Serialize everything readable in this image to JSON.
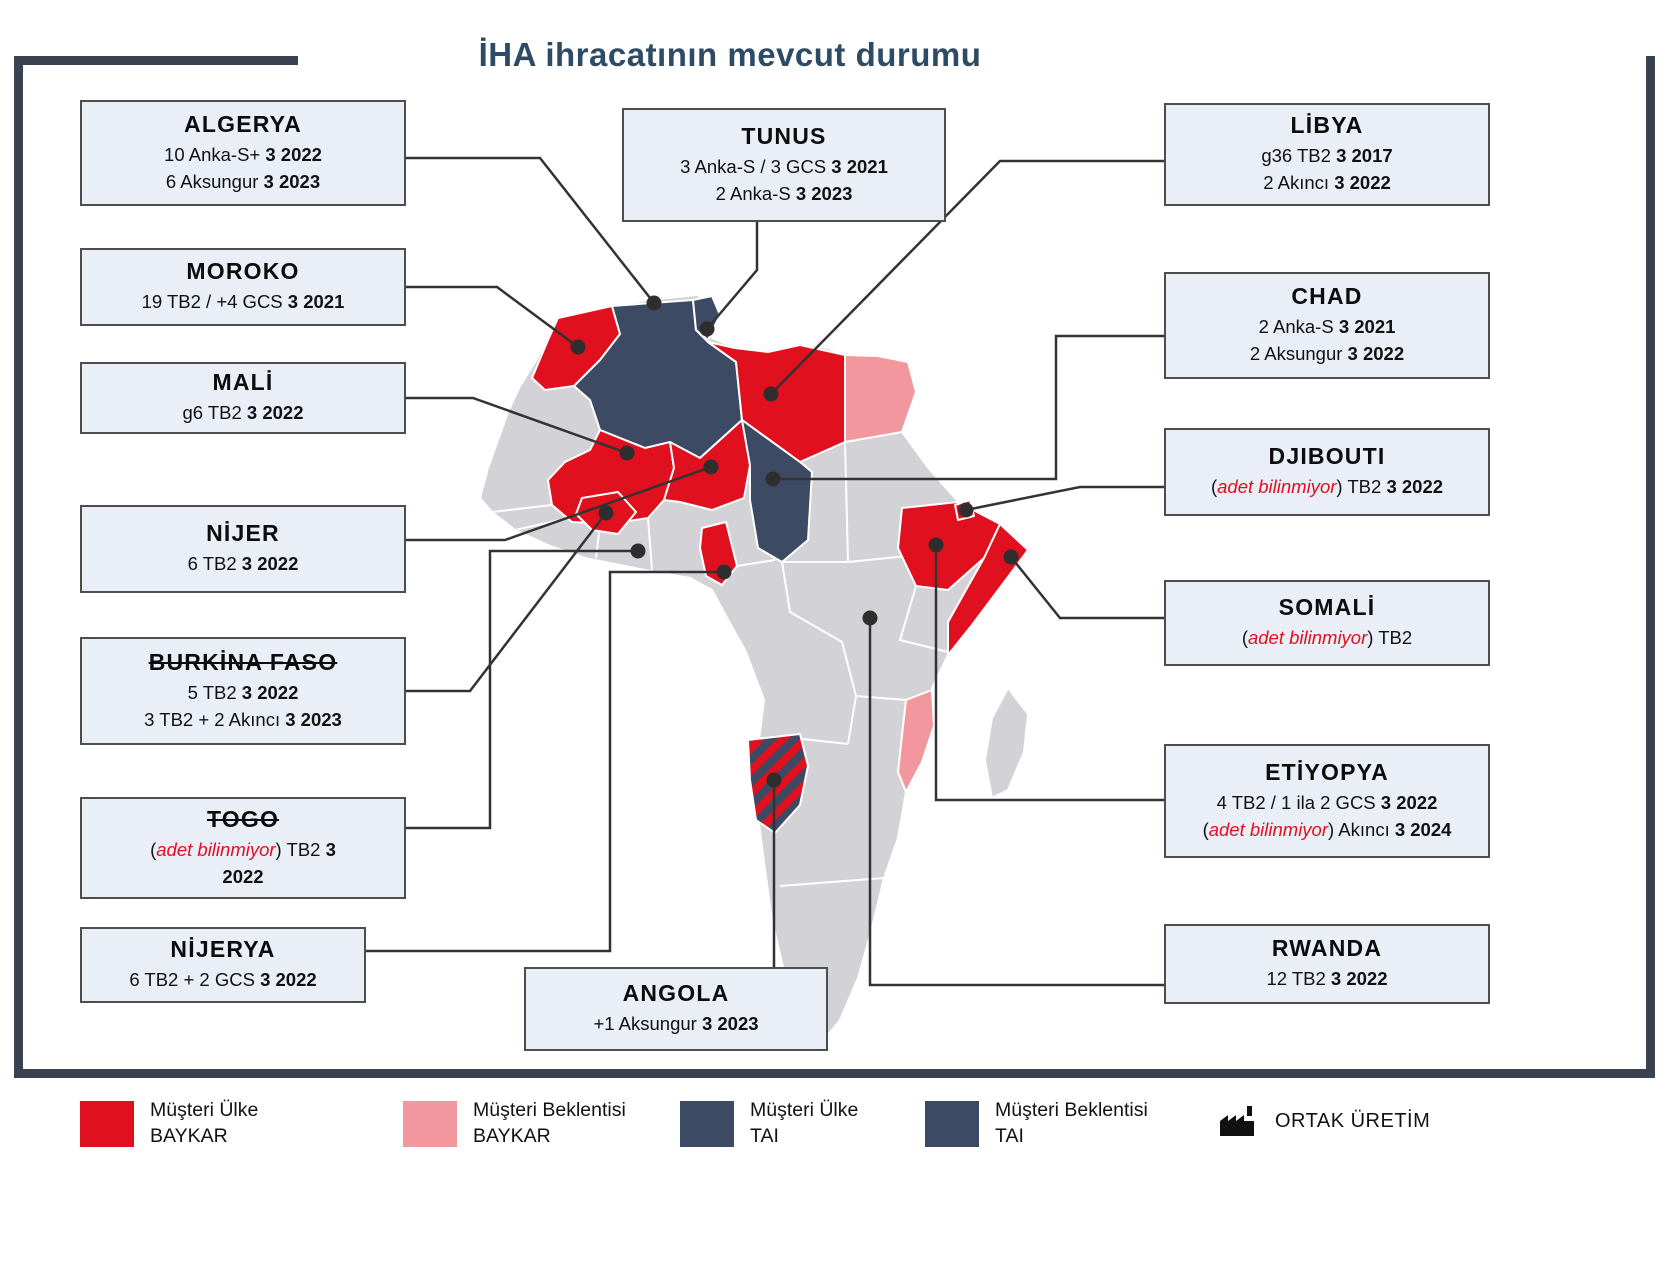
{
  "title": "İHA ihracatının mevcut durumu",
  "colors": {
    "customer_baykar": "#e0101f",
    "prospect_baykar": "#f2979e",
    "customer_tai": "#3d4a63",
    "prospect_tai": "#3d4a63",
    "map_base": "#d3d3d7",
    "frame": "#3a4252",
    "box_bg": "#e9eef7",
    "accent_title": "#2e4b66"
  },
  "boxes": {
    "algerya": {
      "name": "ALGERYA",
      "lines": [
        [
          {
            "t": "10 Anka-S+ "
          },
          {
            "t": "3 2022",
            "b": true
          }
        ],
        [
          {
            "t": "6 Aksungur "
          },
          {
            "t": "3 2023",
            "b": true
          }
        ]
      ]
    },
    "moroko": {
      "name": "MOROKO",
      "lines": [
        [
          {
            "t": "19 TB2 / +4 GCS "
          },
          {
            "t": "3 2021",
            "b": true
          }
        ]
      ]
    },
    "mali": {
      "name": "MALİ",
      "lines": [
        [
          {
            "t": "g6 TB2 "
          },
          {
            "t": "3 2022",
            "b": true
          }
        ]
      ]
    },
    "nijer": {
      "name": "NİJER",
      "lines": [
        [
          {
            "t": "6 TB2 "
          },
          {
            "t": "3 2022",
            "b": true
          }
        ]
      ]
    },
    "burkina": {
      "name": "BURKİNA FASO",
      "strike": true,
      "lines": [
        [
          {
            "t": "5 TB2 "
          },
          {
            "t": "3 2022",
            "b": true
          }
        ],
        [
          {
            "t": "3 TB2 + 2 Akıncı "
          },
          {
            "t": "3 2023",
            "b": true
          }
        ]
      ]
    },
    "togo": {
      "name": "TOGO",
      "strike": true,
      "lines": [
        [
          {
            "t": "("
          },
          {
            "t": "adet bilinmiyor",
            "ri": true
          },
          {
            "t": ") TB2 "
          },
          {
            "t": "3",
            "b": true
          }
        ],
        [
          {
            "t": "2022",
            "b": true
          }
        ]
      ]
    },
    "nijerya": {
      "name": "NİJERYA",
      "lines": [
        [
          {
            "t": "6 TB2 + 2 GCS "
          },
          {
            "t": "3 2022",
            "b": true
          }
        ]
      ]
    },
    "tunus": {
      "name": "TUNUS",
      "lines": [
        [
          {
            "t": "3 Anka-S / 3 GCS "
          },
          {
            "t": "3 2021",
            "b": true
          }
        ],
        [
          {
            "t": "2 Anka-S "
          },
          {
            "t": "3 2023",
            "b": true
          }
        ]
      ]
    },
    "angola": {
      "name": "ANGOLA",
      "lines": [
        [
          {
            "t": "+1 Aksungur "
          },
          {
            "t": "3 2023",
            "b": true
          }
        ]
      ]
    },
    "libya": {
      "name": "LİBYA",
      "lines": [
        [
          {
            "t": "g36 TB2 "
          },
          {
            "t": "3 2017",
            "b": true
          }
        ],
        [
          {
            "t": "2 Akıncı "
          },
          {
            "t": "3 2022",
            "b": true
          }
        ]
      ]
    },
    "chad": {
      "name": "CHAD",
      "lines": [
        [
          {
            "t": "2 Anka-S "
          },
          {
            "t": "3 2021",
            "b": true
          }
        ],
        [
          {
            "t": "2 Aksungur "
          },
          {
            "t": "3 2022",
            "b": true
          }
        ]
      ]
    },
    "djibouti": {
      "name": "DJIBOUTI",
      "lines": [
        [
          {
            "t": "("
          },
          {
            "t": "adet bilinmiyor",
            "ri": true
          },
          {
            "t": ") TB2 "
          },
          {
            "t": "3 2022",
            "b": true
          }
        ]
      ]
    },
    "somali": {
      "name": "SOMALİ",
      "lines": [
        [
          {
            "t": "("
          },
          {
            "t": "adet bilinmiyor",
            "ri": true
          },
          {
            "t": ") TB2"
          }
        ]
      ]
    },
    "etiyopya": {
      "name": "ETİYOPYA",
      "lines": [
        [
          {
            "t": "4 TB2 / 1 ila 2 GCS "
          },
          {
            "t": "3 2022",
            "b": true
          }
        ],
        [
          {
            "t": "("
          },
          {
            "t": "adet bilinmiyor",
            "ri": true
          },
          {
            "t": ") Akıncı "
          },
          {
            "t": "3 2024",
            "b": true
          }
        ]
      ]
    },
    "rwanda": {
      "name": "RWANDA",
      "lines": [
        [
          {
            "t": "12 TB2 "
          },
          {
            "t": "3 2022",
            "b": true
          }
        ]
      ]
    }
  },
  "legend": {
    "items": [
      {
        "line1": "Müşteri Ülke",
        "line2": "BAYKAR",
        "color": "#e0101f"
      },
      {
        "line1": "Müşteri Beklentisi",
        "line2": "BAYKAR",
        "color": "#f2979e"
      },
      {
        "line1": "Müşteri Ülke",
        "line2": "TAI",
        "color": "#3d4a63"
      },
      {
        "line1": "Müşteri Beklentisi",
        "line2": "TAI",
        "color": "#3d4a63"
      },
      {
        "label": "ORTAK ÜRETİM",
        "icon": "factory-icon"
      }
    ]
  },
  "map": {
    "regions": [
      {
        "country": "Morocco",
        "status": "customer-baykar"
      },
      {
        "country": "Algeria",
        "status": "customer-tai"
      },
      {
        "country": "Tunisia",
        "status": "customer-tai"
      },
      {
        "country": "Libya",
        "status": "customer-baykar"
      },
      {
        "country": "Egypt",
        "status": "prospect-baykar"
      },
      {
        "country": "Mali",
        "status": "customer-baykar"
      },
      {
        "country": "Niger",
        "status": "customer-baykar"
      },
      {
        "country": "Chad",
        "status": "customer-tai"
      },
      {
        "country": "Burkina Faso",
        "status": "customer-baykar"
      },
      {
        "country": "Togo/Benin",
        "status": "customer-baykar"
      },
      {
        "country": "Ethiopia",
        "status": "customer-baykar"
      },
      {
        "country": "Djibouti",
        "status": "customer-baykar"
      },
      {
        "country": "Somalia",
        "status": "customer-baykar"
      },
      {
        "country": "Mozambique",
        "status": "prospect-baykar"
      },
      {
        "country": "Angola",
        "status": "joint-production"
      }
    ]
  }
}
